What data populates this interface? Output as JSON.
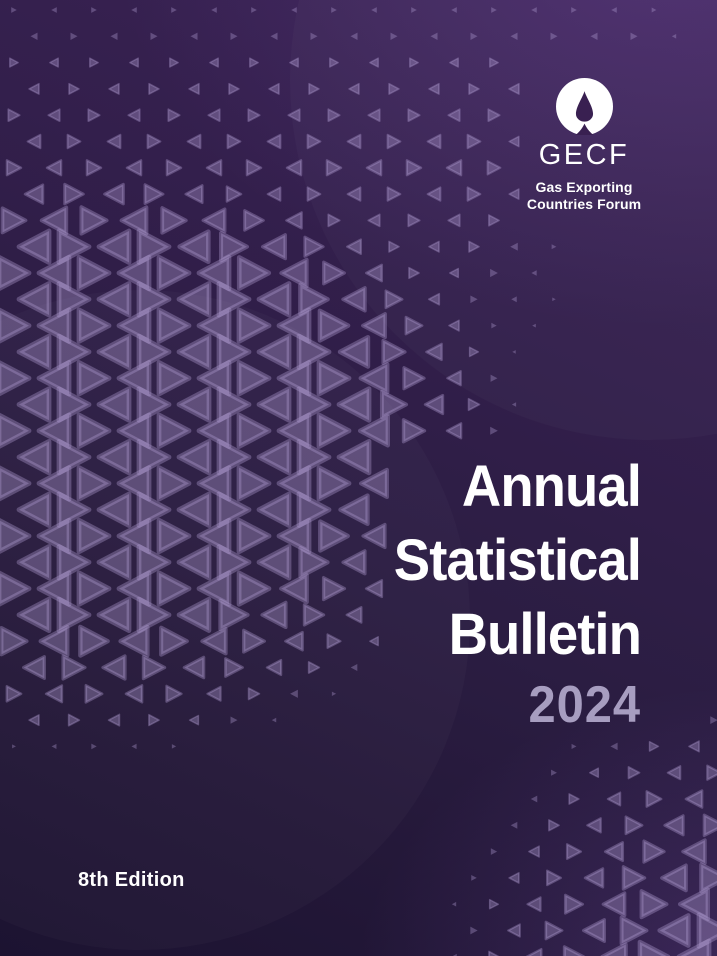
{
  "page": {
    "kind": "report-cover"
  },
  "logo": {
    "acronym": "GECF",
    "org_line1": "Gas Exporting",
    "org_line2": "Countries Forum",
    "flame_icon": "flame-in-circle"
  },
  "title": {
    "line1": "Annual",
    "line2": "Statistical",
    "line3": "Bulletin",
    "year": "2024"
  },
  "edition": {
    "label": "8th Edition"
  },
  "colors": {
    "background_top_right": "#3b2355",
    "background_mid": "#2b1d42",
    "background_bottom_left": "#1c1331",
    "triangle": "#b29ed4",
    "triangle_opacity": 0.36,
    "year_text": "#a79dc0",
    "text": "#ffffff",
    "flame_dark": "#392051"
  }
}
